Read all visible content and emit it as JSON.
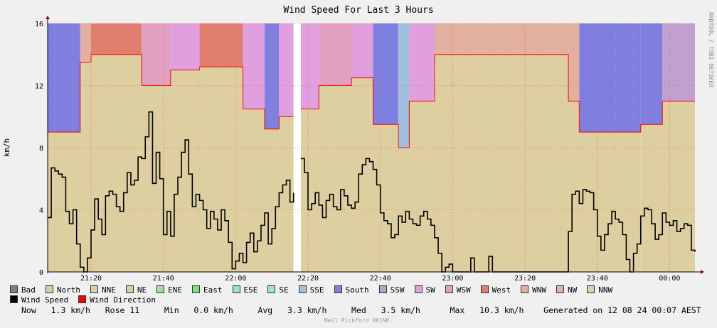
{
  "chart_data": {
    "type": "area",
    "title": "Wind Speed For Last 3 Hours",
    "ylabel": "km/h",
    "xlabel": "",
    "ylim": [
      0,
      16
    ],
    "y_ticks": [
      0,
      4,
      8,
      12,
      16
    ],
    "x_range": [
      "21:08",
      "00:07"
    ],
    "x_ticks": [
      "21:20",
      "21:40",
      "22:00",
      "22:20",
      "22:40",
      "23:00",
      "23:20",
      "23:40",
      "00:00"
    ],
    "grid": true,
    "gap": [
      "22:16",
      "22:18"
    ],
    "direction_colors": {
      "North": "#ddcf9f",
      "NNE": "#ddcf9f",
      "NW": "#e1b09f",
      "WNW": "#e1b09f",
      "West": "#e17f6f",
      "WSW": "#e1a0c0",
      "SW": "#e0a0e0",
      "SSW": "#c0a0cf",
      "South": "#7f7fe0",
      "SSE": "#a0c0e0"
    },
    "direction_bands": [
      {
        "from": "21:08",
        "to": "21:17",
        "base": "North",
        "top": "South",
        "bound": 9
      },
      {
        "from": "21:17",
        "to": "21:20",
        "base": "North",
        "top": "NW",
        "bound": 13.5
      },
      {
        "from": "21:20",
        "to": "21:34",
        "base": "North",
        "top": "West",
        "bound": 14
      },
      {
        "from": "21:34",
        "to": "21:42",
        "base": "NNE",
        "top": "WSW",
        "bound": 12
      },
      {
        "from": "21:42",
        "to": "21:50",
        "base": "North",
        "top": "SW",
        "bound": 13
      },
      {
        "from": "21:50",
        "to": "22:02",
        "base": "North",
        "top": "West",
        "bound": 13.2
      },
      {
        "from": "22:02",
        "to": "22:08",
        "base": "North",
        "top": "SW",
        "bound": 10.5
      },
      {
        "from": "22:08",
        "to": "22:12",
        "base": "North",
        "top": "South",
        "bound": 9.2
      },
      {
        "from": "22:12",
        "to": "22:16",
        "base": "North",
        "top": "SW",
        "bound": 10
      },
      {
        "from": "22:18",
        "to": "22:23",
        "base": "North",
        "top": "SW",
        "bound": 10.5
      },
      {
        "from": "22:23",
        "to": "22:32",
        "base": "North",
        "top": "WSW",
        "bound": 12
      },
      {
        "from": "22:32",
        "to": "22:38",
        "base": "North",
        "top": "SW",
        "bound": 12.5
      },
      {
        "from": "22:38",
        "to": "22:45",
        "base": "North",
        "top": "South",
        "bound": 9.5
      },
      {
        "from": "22:45",
        "to": "22:48",
        "base": "North",
        "top": "SSE",
        "bound": 8
      },
      {
        "from": "22:48",
        "to": "22:55",
        "base": "North",
        "top": "SW",
        "bound": 11
      },
      {
        "from": "22:55",
        "to": "23:32",
        "base": "North",
        "top": "NW",
        "bound": 14
      },
      {
        "from": "23:32",
        "to": "23:35",
        "base": "North",
        "top": "WNW",
        "bound": 11
      },
      {
        "from": "23:35",
        "to": "23:52",
        "base": "North",
        "top": "South",
        "bound": 9
      },
      {
        "from": "23:52",
        "to": "23:58",
        "base": "North",
        "top": "South",
        "bound": 9.5
      },
      {
        "from": "23:58",
        "to": "00:07",
        "base": "North",
        "top": "SSW",
        "bound": 11
      }
    ],
    "series": [
      {
        "name": "Wind Speed",
        "color": "#000000",
        "points": [
          [
            "21:08",
            3.5
          ],
          [
            "21:09",
            6.7
          ],
          [
            "21:10",
            6.5
          ],
          [
            "21:11",
            6.3
          ],
          [
            "21:12",
            6.1
          ],
          [
            "21:13",
            3.9
          ],
          [
            "21:14",
            3.1
          ],
          [
            "21:15",
            4.0
          ],
          [
            "21:16",
            1.8
          ],
          [
            "21:17",
            0.3
          ],
          [
            "21:18",
            0.0
          ],
          [
            "21:19",
            0.9
          ],
          [
            "21:20",
            2.7
          ],
          [
            "21:21",
            4.7
          ],
          [
            "21:22",
            3.4
          ],
          [
            "21:23",
            2.4
          ],
          [
            "21:24",
            4.9
          ],
          [
            "21:25",
            5.2
          ],
          [
            "21:26",
            5.0
          ],
          [
            "21:27",
            4.2
          ],
          [
            "21:28",
            3.9
          ],
          [
            "21:29",
            5.1
          ],
          [
            "21:30",
            6.4
          ],
          [
            "21:31",
            5.6
          ],
          [
            "21:32",
            5.9
          ],
          [
            "21:33",
            7.4
          ],
          [
            "21:34",
            7.3
          ],
          [
            "21:35",
            8.7
          ],
          [
            "21:36",
            10.3
          ],
          [
            "21:37",
            5.7
          ],
          [
            "21:38",
            7.7
          ],
          [
            "21:39",
            6.0
          ],
          [
            "21:40",
            2.4
          ],
          [
            "21:41",
            3.9
          ],
          [
            "21:42",
            2.3
          ],
          [
            "21:43",
            5.0
          ],
          [
            "21:44",
            6.1
          ],
          [
            "21:45",
            7.7
          ],
          [
            "21:46",
            8.5
          ],
          [
            "21:47",
            6.3
          ],
          [
            "21:48",
            4.2
          ],
          [
            "21:49",
            5.0
          ],
          [
            "21:50",
            4.6
          ],
          [
            "21:51",
            4.0
          ],
          [
            "21:52",
            2.8
          ],
          [
            "21:53",
            3.9
          ],
          [
            "21:54",
            3.4
          ],
          [
            "21:55",
            2.7
          ],
          [
            "21:56",
            4.0
          ],
          [
            "21:57",
            3.3
          ],
          [
            "21:58",
            1.9
          ],
          [
            "21:59",
            0.2
          ],
          [
            "22:00",
            0.7
          ],
          [
            "22:01",
            1.2
          ],
          [
            "22:02",
            0.6
          ],
          [
            "22:03",
            1.9
          ],
          [
            "22:04",
            2.5
          ],
          [
            "22:05",
            1.3
          ],
          [
            "22:06",
            2.0
          ],
          [
            "22:07",
            3.0
          ],
          [
            "22:08",
            3.8
          ],
          [
            "22:09",
            1.8
          ],
          [
            "22:10",
            2.8
          ],
          [
            "22:11",
            4.2
          ],
          [
            "22:12",
            5.1
          ],
          [
            "22:13",
            5.6
          ],
          [
            "22:14",
            5.9
          ],
          [
            "22:15",
            4.5
          ],
          [
            "22:16",
            5.1
          ],
          [
            "22:18",
            7.3
          ],
          [
            "22:19",
            6.4
          ],
          [
            "22:20",
            4.0
          ],
          [
            "22:21",
            4.4
          ],
          [
            "22:22",
            5.1
          ],
          [
            "22:23",
            4.3
          ],
          [
            "22:24",
            3.5
          ],
          [
            "22:25",
            4.6
          ],
          [
            "22:26",
            5.0
          ],
          [
            "22:27",
            4.2
          ],
          [
            "22:28",
            4.0
          ],
          [
            "22:29",
            5.3
          ],
          [
            "22:30",
            4.9
          ],
          [
            "22:31",
            4.3
          ],
          [
            "22:32",
            4.1
          ],
          [
            "22:33",
            4.5
          ],
          [
            "22:34",
            6.3
          ],
          [
            "22:35",
            6.9
          ],
          [
            "22:36",
            7.3
          ],
          [
            "22:37",
            7.1
          ],
          [
            "22:38",
            6.6
          ],
          [
            "22:39",
            5.6
          ],
          [
            "22:40",
            3.8
          ],
          [
            "22:41",
            3.3
          ],
          [
            "22:42",
            3.1
          ],
          [
            "22:43",
            2.2
          ],
          [
            "22:44",
            2.4
          ],
          [
            "22:45",
            3.6
          ],
          [
            "22:46",
            3.2
          ],
          [
            "22:47",
            3.9
          ],
          [
            "22:48",
            3.4
          ],
          [
            "22:49",
            3.1
          ],
          [
            "22:50",
            3.0
          ],
          [
            "22:51",
            3.6
          ],
          [
            "22:52",
            3.9
          ],
          [
            "22:53",
            3.4
          ],
          [
            "22:54",
            3.0
          ],
          [
            "22:55",
            2.2
          ],
          [
            "22:56",
            1.2
          ],
          [
            "22:57",
            0.0
          ],
          [
            "22:58",
            0.3
          ],
          [
            "22:59",
            0.5
          ],
          [
            "23:00",
            0.0
          ],
          [
            "23:04",
            0.0
          ],
          [
            "23:05",
            0.9
          ],
          [
            "23:06",
            0.0
          ],
          [
            "23:09",
            0.0
          ],
          [
            "23:10",
            1.0
          ],
          [
            "23:11",
            0.0
          ],
          [
            "23:20",
            0.0
          ],
          [
            "23:30",
            0.0
          ],
          [
            "23:32",
            2.6
          ],
          [
            "23:33",
            5.0
          ],
          [
            "23:34",
            5.2
          ],
          [
            "23:35",
            4.4
          ],
          [
            "23:36",
            5.3
          ],
          [
            "23:37",
            5.2
          ],
          [
            "23:38",
            5.1
          ],
          [
            "23:39",
            4.0
          ],
          [
            "23:40",
            2.3
          ],
          [
            "23:41",
            1.4
          ],
          [
            "23:42",
            2.4
          ],
          [
            "23:43",
            3.1
          ],
          [
            "23:44",
            3.9
          ],
          [
            "23:45",
            3.4
          ],
          [
            "23:46",
            3.2
          ],
          [
            "23:47",
            2.4
          ],
          [
            "23:48",
            0.8
          ],
          [
            "23:49",
            0.0
          ],
          [
            "23:50",
            1.2
          ],
          [
            "23:51",
            1.8
          ],
          [
            "23:52",
            3.6
          ],
          [
            "23:53",
            4.1
          ],
          [
            "23:54",
            4.0
          ],
          [
            "23:55",
            3.1
          ],
          [
            "23:56",
            2.1
          ],
          [
            "23:57",
            2.4
          ],
          [
            "23:58",
            3.8
          ],
          [
            "23:59",
            3.2
          ],
          [
            "00:00",
            3.0
          ],
          [
            "00:01",
            3.3
          ],
          [
            "00:02",
            2.6
          ],
          [
            "00:03",
            2.8
          ],
          [
            "00:04",
            3.1
          ],
          [
            "00:05",
            3.0
          ],
          [
            "00:06",
            1.4
          ],
          [
            "00:07",
            1.3
          ]
        ]
      }
    ],
    "legend": [
      {
        "label": "Bad",
        "color": "#7f7f7f"
      },
      {
        "label": "North",
        "color": "#ddcf9f"
      },
      {
        "label": "NNE",
        "color": "#ddcf9f"
      },
      {
        "label": "NE",
        "color": "#bfdfa0"
      },
      {
        "label": "ENE",
        "color": "#a0e0a0"
      },
      {
        "label": "East",
        "color": "#7fdf7f"
      },
      {
        "label": "ESE",
        "color": "#a0e0c0"
      },
      {
        "label": "SE",
        "color": "#a0e0e0"
      },
      {
        "label": "SSE",
        "color": "#a0c0e0"
      },
      {
        "label": "South",
        "color": "#7f7fe0"
      },
      {
        "label": "SSW",
        "color": "#c0a0cf"
      },
      {
        "label": "SW",
        "color": "#e0a0e0"
      },
      {
        "label": "WSW",
        "color": "#e1a0c0"
      },
      {
        "label": "West",
        "color": "#e17f6f"
      },
      {
        "label": "WNW",
        "color": "#e1b09f"
      },
      {
        "label": "NW",
        "color": "#e1b09f"
      },
      {
        "label": "NNW",
        "color": "#ddcf9f"
      },
      {
        "label": "Wind Speed",
        "color": "#000000"
      },
      {
        "label": "Wind Direction",
        "color": "#ff0000"
      }
    ]
  },
  "stats": {
    "now_label": "Now",
    "now_value": "1.3 km/h",
    "rose_label": "Rose",
    "rose_value": "11",
    "min_label": "Min",
    "min_value": "0.0 km/h",
    "avg_label": "Avg",
    "avg_value": "3.3 km/h",
    "med_label": "Med",
    "med_value": "3.5 km/h",
    "max_label": "Max",
    "max_value": "10.3 km/h",
    "generated": "Generated on 12 08 24 00:07 AEST"
  },
  "watermark": "RRDTOOL / TOBI OETIKER",
  "credit": "Neil Pickford VK1NP."
}
